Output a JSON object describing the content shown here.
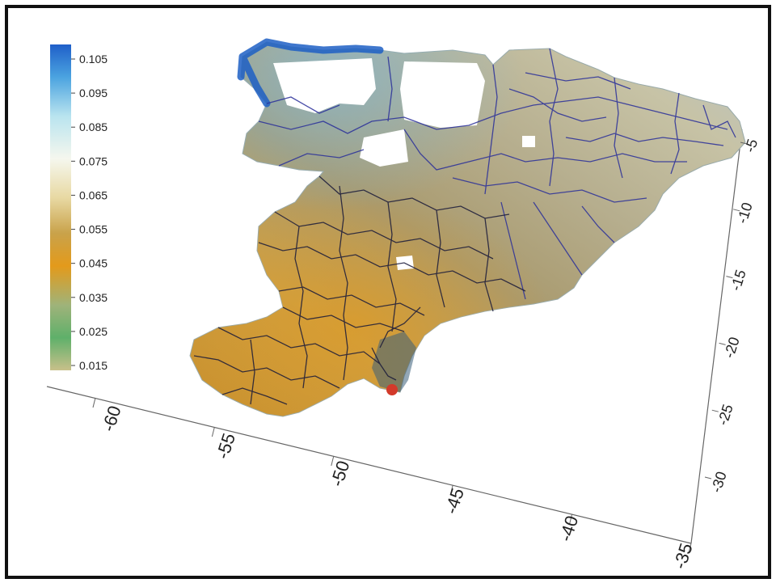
{
  "colorbar": {
    "labels": [
      "0.105",
      "0.095",
      "0.085",
      "0.075",
      "0.065",
      "0.055",
      "0.045",
      "0.035",
      "0.025",
      "0.015"
    ],
    "colors": [
      "#1f5fc9",
      "#4ba3e0",
      "#b9e4ef",
      "#f5f7ee",
      "#e8d9a3",
      "#c9a24a",
      "#e39a1b",
      "#9fb37a",
      "#5fb06a",
      "#c8c08a"
    ]
  },
  "axes": {
    "x_ticks": [
      "-60",
      "-55",
      "-50",
      "-45",
      "-40",
      "-35"
    ],
    "y_ticks": [
      "-5",
      "-10",
      "-15",
      "-20",
      "-25",
      "-30"
    ]
  },
  "map": {
    "boundary_color_north": "#2a2f9a",
    "boundary_color_south": "#1a1a3a",
    "accent_blue": "#1d5fc4",
    "accent_red": "#d33a2a"
  }
}
